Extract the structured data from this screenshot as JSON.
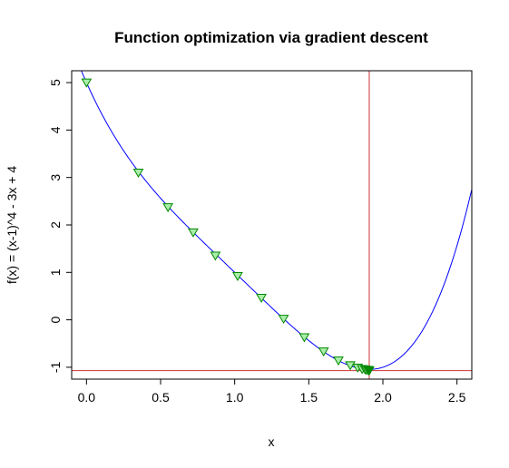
{
  "chart_data": {
    "type": "line",
    "title": "Function optimization via gradient descent",
    "xlabel": "x",
    "ylabel": "f(x) = (x-1)^4 - 3x + 4",
    "xlim": [
      -0.1,
      2.6
    ],
    "ylim": [
      -1.25,
      5.25
    ],
    "x_ticks": [
      0.0,
      0.5,
      1.0,
      1.5,
      2.0,
      2.5
    ],
    "x_tick_labels": [
      "0.0",
      "0.5",
      "1.0",
      "1.5",
      "2.0",
      "2.5"
    ],
    "y_ticks": [
      -1,
      0,
      1,
      2,
      3,
      4,
      5
    ],
    "y_tick_labels": [
      "-1",
      "0",
      "1",
      "2",
      "3",
      "4",
      "5"
    ],
    "grid": false,
    "series": [
      {
        "type": "function-curve",
        "formula": "(x-1)^4 - 3x + 4",
        "domain": [
          -0.1,
          2.6
        ],
        "color": "#0000ff"
      },
      {
        "type": "points",
        "marker": "inverted-triangle",
        "color": "#008800",
        "fill": "#aaeeaa",
        "x": [
          0.0,
          0.35,
          0.55,
          0.72,
          0.87,
          1.02,
          1.18,
          1.33,
          1.47,
          1.6,
          1.7,
          1.78,
          1.83,
          1.86,
          1.88,
          1.89,
          1.9,
          1.905,
          1.908
        ],
        "y": [
          5.0,
          3.1,
          2.37,
          1.84,
          1.35,
          0.92,
          0.46,
          0.02,
          -0.37,
          -0.67,
          -0.86,
          -0.96,
          -1.01,
          -1.04,
          -1.05,
          -1.06,
          -1.06,
          -1.07,
          -1.07
        ]
      }
    ],
    "reference_lines": [
      {
        "orientation": "vertical",
        "x": 1.908,
        "color": "#cc3333"
      },
      {
        "orientation": "horizontal",
        "y": -1.07,
        "color": "#cc3333"
      }
    ]
  }
}
